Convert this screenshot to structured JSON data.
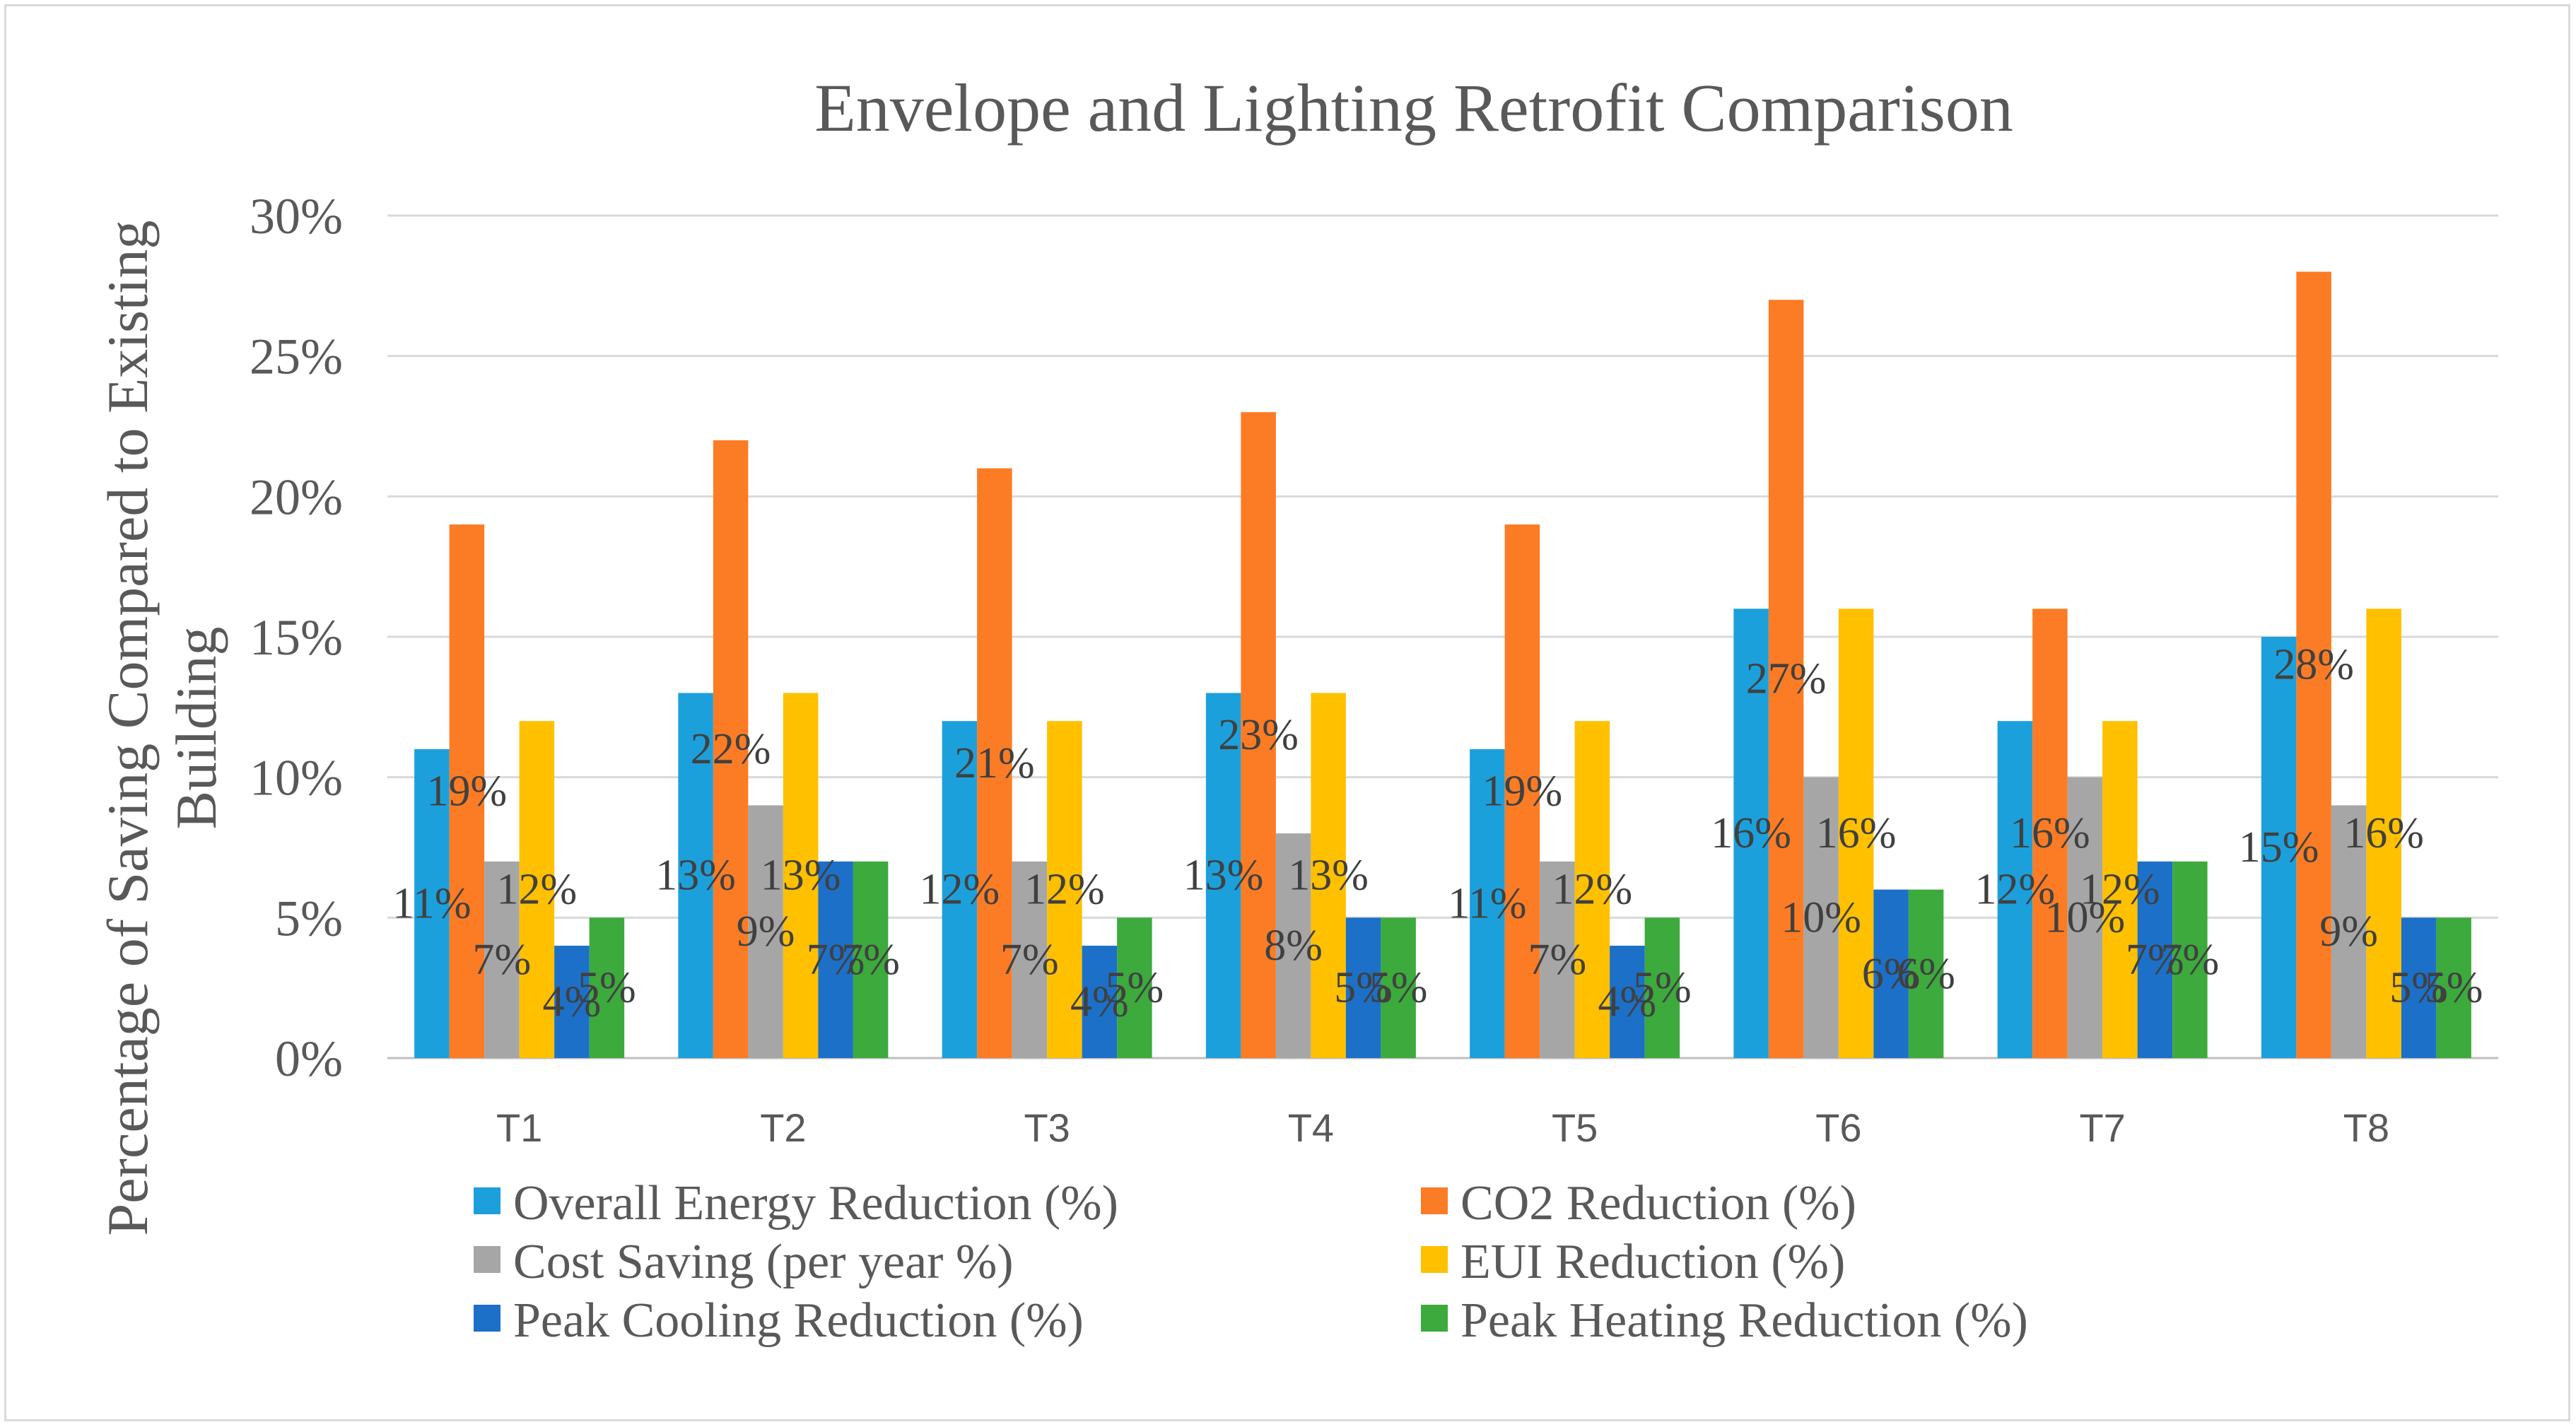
{
  "chart_data": {
    "type": "bar",
    "title": "Envelope and Lighting Retrofit Comparison",
    "xlabel": "",
    "ylabel_lines": [
      "Percentage of Saving Compared to Existing",
      "Building"
    ],
    "ylim": [
      0,
      30
    ],
    "yticks": [
      0,
      5,
      10,
      15,
      20,
      25,
      30
    ],
    "ytick_labels": [
      "0%",
      "5%",
      "10%",
      "15%",
      "20%",
      "25%",
      "30%"
    ],
    "grid": true,
    "legend_position": "bottom",
    "categories": [
      "T1",
      "T2",
      "T3",
      "T4",
      "T5",
      "T6",
      "T7",
      "T8"
    ],
    "series": [
      {
        "name": "Overall Energy Reduction (%)",
        "color": "#1ca0dc",
        "values": [
          11,
          13,
          12,
          13,
          11,
          16,
          12,
          15
        ]
      },
      {
        "name": "CO2 Reduction (%)",
        "color": "#fb7c24",
        "values": [
          19,
          22,
          21,
          23,
          19,
          27,
          16,
          28
        ]
      },
      {
        "name": "Cost Saving (per year %)",
        "color": "#a6a6a6",
        "values": [
          7,
          9,
          7,
          8,
          7,
          10,
          10,
          9
        ]
      },
      {
        "name": "EUI Reduction (%)",
        "color": "#ffc000",
        "values": [
          12,
          13,
          12,
          13,
          12,
          16,
          12,
          16
        ]
      },
      {
        "name": "Peak Cooling Reduction (%)",
        "color": "#1c70c8",
        "values": [
          4,
          7,
          4,
          5,
          4,
          6,
          7,
          5
        ]
      },
      {
        "name": "Peak Heating Reduction (%)",
        "color": "#3caa3c",
        "values": [
          5,
          7,
          5,
          5,
          5,
          6,
          7,
          5
        ]
      }
    ],
    "data_label_suffix": "%"
  }
}
